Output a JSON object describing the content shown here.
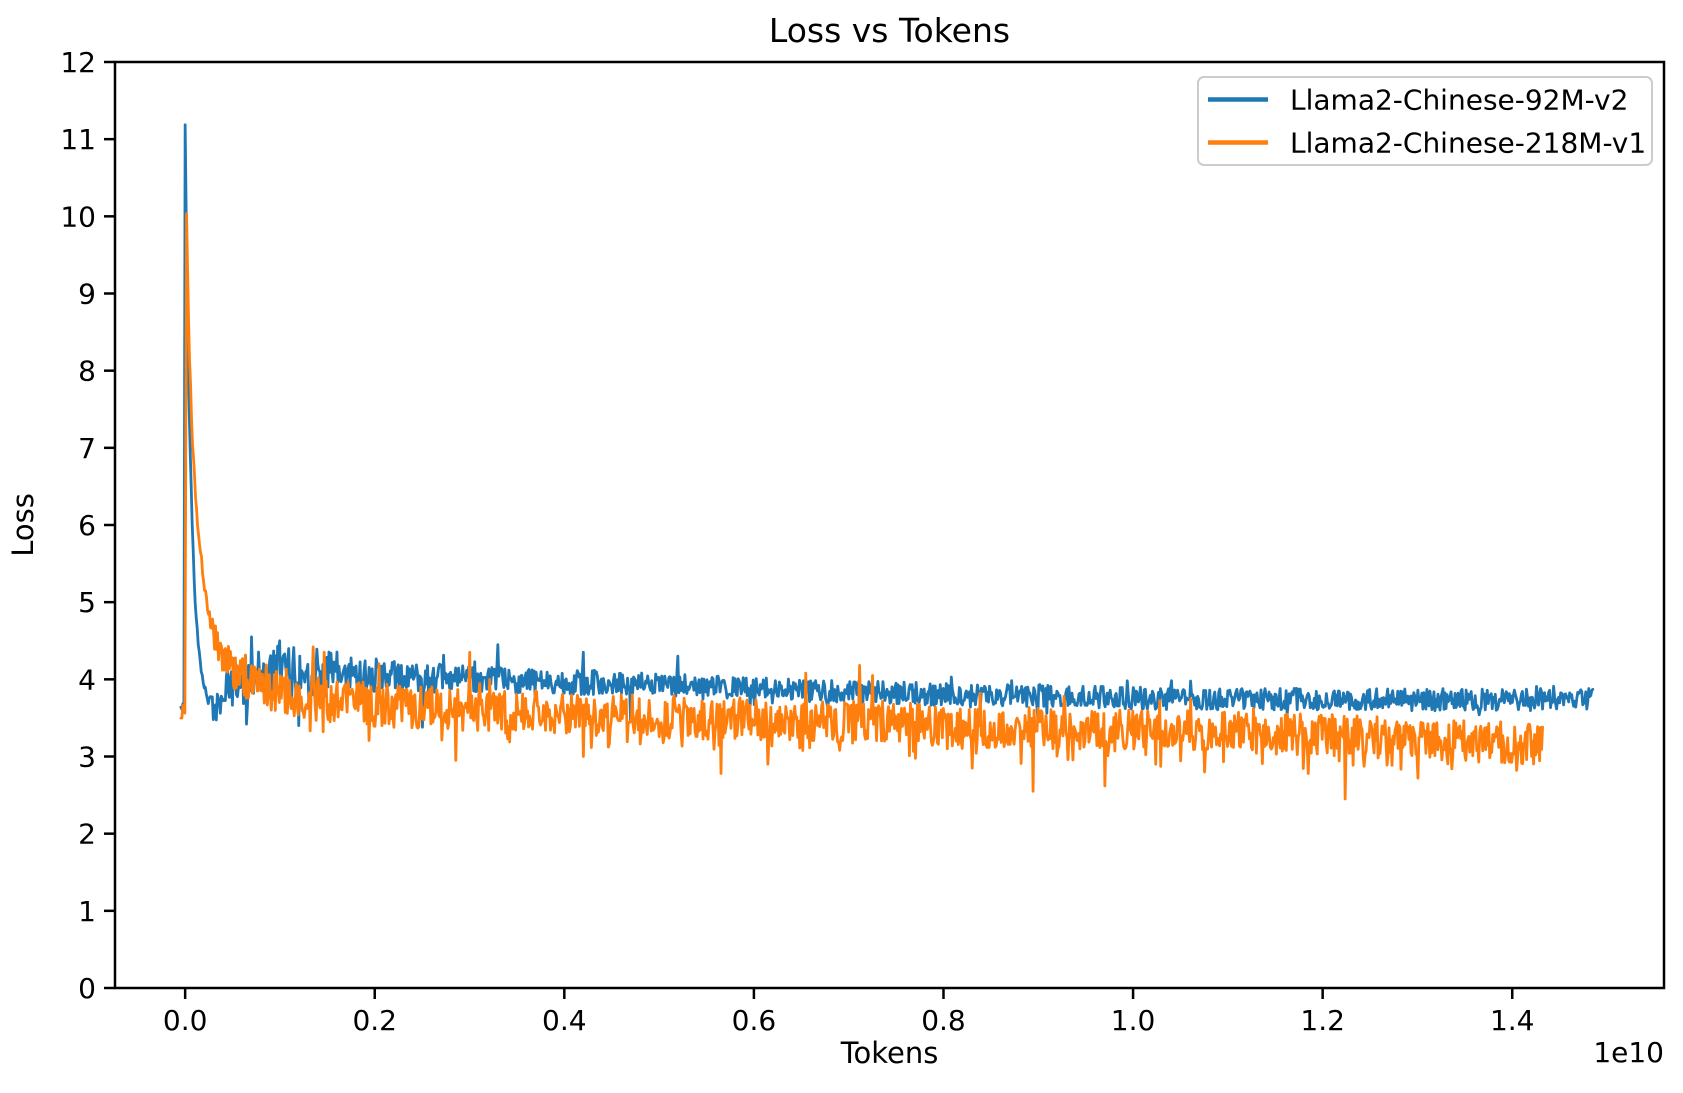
{
  "figure": {
    "background": "#ffffff",
    "spine_color": "#000000",
    "tick_color": "#000000",
    "legend_edge_color": "#cccccc",
    "legend_face_color": "#ffffff"
  },
  "chart_data": {
    "type": "line",
    "title": "Loss vs Tokens",
    "xlabel": "Tokens",
    "ylabel": "Loss",
    "x_offset_label": "1e10",
    "x_units": "tokens, values in multiples of 1e10",
    "grid": false,
    "legend_position": "upper right",
    "xlim": [
      -0.074,
      1.5601
    ],
    "ylim": [
      0,
      12
    ],
    "xticks": [
      {
        "v": 0.0,
        "label": "0.0"
      },
      {
        "v": 0.2,
        "label": "0.2"
      },
      {
        "v": 0.4,
        "label": "0.4"
      },
      {
        "v": 0.6,
        "label": "0.6"
      },
      {
        "v": 0.8,
        "label": "0.8"
      },
      {
        "v": 1.0,
        "label": "1.0"
      },
      {
        "v": 1.2,
        "label": "1.2"
      },
      {
        "v": 1.4,
        "label": "1.4"
      }
    ],
    "yticks": [
      {
        "v": 0,
        "label": "0"
      },
      {
        "v": 1,
        "label": "1"
      },
      {
        "v": 2,
        "label": "2"
      },
      {
        "v": 3,
        "label": "3"
      },
      {
        "v": 4,
        "label": "4"
      },
      {
        "v": 5,
        "label": "5"
      },
      {
        "v": 6,
        "label": "6"
      },
      {
        "v": 7,
        "label": "7"
      },
      {
        "v": 8,
        "label": "8"
      },
      {
        "v": 9,
        "label": "9"
      },
      {
        "v": 10,
        "label": "10"
      },
      {
        "v": 11,
        "label": "11"
      },
      {
        "v": 12,
        "label": "12"
      }
    ],
    "series": [
      {
        "name": "Llama2-Chinese-92M-v2",
        "color": "#1f77b4",
        "start_loss": 11.2,
        "end_loss": 3.73,
        "x_end": 1.485,
        "points": 1400,
        "seed": 42,
        "tail_down": false,
        "pre": {
          "x0": -0.0045,
          "x1": -0.0005,
          "level": 3.62,
          "amp": 0.09
        },
        "trend": [
          [
            0.0,
            11.2
          ],
          [
            0.0015,
            9.6
          ],
          [
            0.004,
            7.6
          ],
          [
            0.007,
            6.2
          ],
          [
            0.01,
            5.1
          ],
          [
            0.014,
            4.45
          ],
          [
            0.018,
            4.05
          ],
          [
            0.022,
            3.82
          ],
          [
            0.027,
            3.68
          ],
          [
            0.033,
            3.62
          ],
          [
            0.04,
            3.8
          ],
          [
            0.055,
            4.0
          ],
          [
            0.08,
            4.08
          ],
          [
            0.12,
            4.1
          ],
          [
            0.2,
            4.05
          ],
          [
            0.3,
            4.0
          ],
          [
            0.45,
            3.95
          ],
          [
            0.6,
            3.88
          ],
          [
            0.75,
            3.82
          ],
          [
            0.9,
            3.78
          ],
          [
            1.05,
            3.75
          ],
          [
            1.2,
            3.74
          ],
          [
            1.35,
            3.73
          ],
          [
            1.485,
            3.74
          ]
        ],
        "noise": [
          [
            0.0,
            0.02
          ],
          [
            0.01,
            0.04
          ],
          [
            0.025,
            0.08
          ],
          [
            0.035,
            0.2
          ],
          [
            0.05,
            0.33
          ],
          [
            0.08,
            0.36
          ],
          [
            0.13,
            0.34
          ],
          [
            0.2,
            0.22
          ],
          [
            0.3,
            0.17
          ],
          [
            0.5,
            0.15
          ],
          [
            1.485,
            0.14
          ]
        ],
        "events": [
          [
            0.065,
            3.42
          ],
          [
            0.07,
            4.55
          ],
          [
            0.1,
            4.5
          ],
          [
            0.12,
            3.4
          ],
          [
            0.25,
            3.38
          ],
          [
            0.33,
            4.45
          ],
          [
            0.42,
            4.35
          ],
          [
            0.47,
            3.45
          ],
          [
            0.52,
            4.3
          ],
          [
            0.9,
            3.5
          ]
        ]
      },
      {
        "name": "Llama2-Chinese-218M-v1",
        "color": "#ff7f0e",
        "start_loss": 10.05,
        "end_loss": 3.15,
        "x_end": 1.432,
        "points": 1360,
        "seed": 1337,
        "tail_down": true,
        "pre": {
          "x0": -0.0045,
          "x1": 0.0005,
          "level": 3.58,
          "amp": 0.13
        },
        "trend": [
          [
            0.0015,
            10.05
          ],
          [
            0.003,
            9.0
          ],
          [
            0.005,
            8.0
          ],
          [
            0.008,
            7.0
          ],
          [
            0.012,
            6.2
          ],
          [
            0.017,
            5.55
          ],
          [
            0.023,
            5.0
          ],
          [
            0.03,
            4.6
          ],
          [
            0.04,
            4.3
          ],
          [
            0.055,
            4.1
          ],
          [
            0.075,
            3.95
          ],
          [
            0.1,
            3.85
          ],
          [
            0.14,
            3.75
          ],
          [
            0.2,
            3.68
          ],
          [
            0.28,
            3.62
          ],
          [
            0.38,
            3.57
          ],
          [
            0.5,
            3.52
          ],
          [
            0.63,
            3.47
          ],
          [
            0.76,
            3.42
          ],
          [
            0.9,
            3.37
          ],
          [
            1.05,
            3.32
          ],
          [
            1.2,
            3.28
          ],
          [
            1.32,
            3.22
          ],
          [
            1.432,
            3.16
          ]
        ],
        "noise": [
          [
            0.0,
            0.06
          ],
          [
            0.01,
            0.08
          ],
          [
            0.02,
            0.12
          ],
          [
            0.03,
            0.18
          ],
          [
            0.05,
            0.28
          ],
          [
            0.1,
            0.3
          ],
          [
            0.3,
            0.28
          ],
          [
            1.432,
            0.27
          ]
        ],
        "events": [
          [
            0.135,
            4.42
          ],
          [
            0.147,
            4.35
          ],
          [
            0.205,
            4.2
          ],
          [
            0.285,
            2.95
          ],
          [
            0.3,
            4.35
          ],
          [
            0.42,
            3.0
          ],
          [
            0.565,
            2.78
          ],
          [
            0.615,
            2.9
          ],
          [
            0.655,
            4.08
          ],
          [
            0.712,
            4.18
          ],
          [
            0.725,
            4.05
          ],
          [
            0.83,
            2.85
          ],
          [
            0.894,
            2.55
          ],
          [
            0.97,
            2.62
          ],
          [
            1.075,
            2.8
          ],
          [
            1.185,
            2.78
          ],
          [
            1.224,
            2.45
          ],
          [
            1.3,
            2.72
          ],
          [
            1.405,
            2.82
          ]
        ]
      }
    ]
  }
}
